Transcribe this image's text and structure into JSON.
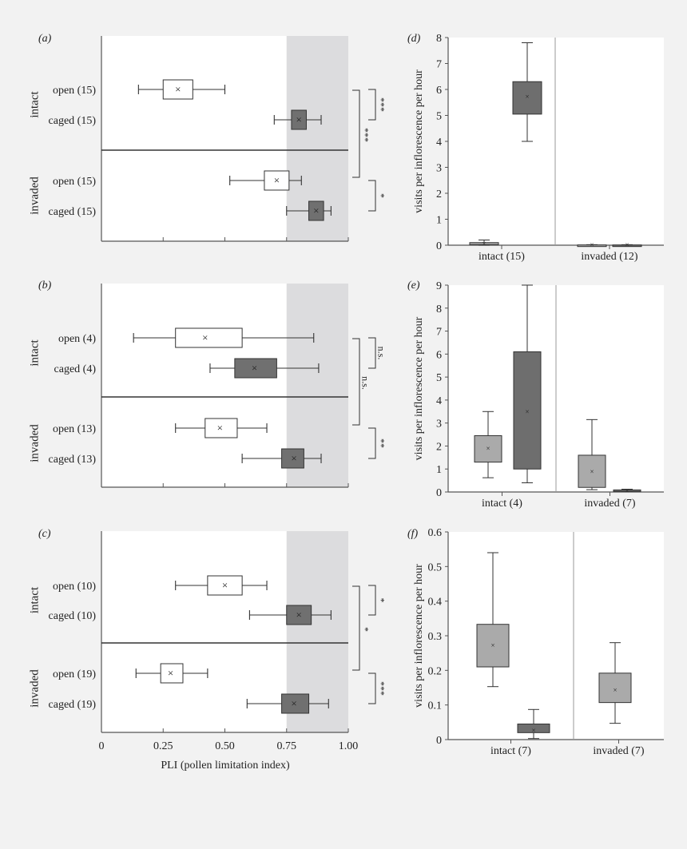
{
  "chart_data": [
    {
      "id": "a",
      "panel_label": "(a)",
      "type": "boxplot-horizontal",
      "xlim": [
        0,
        1
      ],
      "shaded_from": 0.75,
      "groups": [
        {
          "label": "intact",
          "rows": [
            {
              "label": "open (15)",
              "kind": "open",
              "whisker": [
                0.15,
                0.5
              ],
              "box": [
                0.25,
                0.37
              ],
              "mean": 0.31
            },
            {
              "label": "caged (15)",
              "kind": "caged",
              "whisker": [
                0.7,
                0.89
              ],
              "box": [
                0.77,
                0.83
              ],
              "mean": 0.8
            }
          ]
        },
        {
          "label": "invaded",
          "rows": [
            {
              "label": "open (15)",
              "kind": "open",
              "whisker": [
                0.52,
                0.81
              ],
              "box": [
                0.66,
                0.76
              ],
              "mean": 0.71
            },
            {
              "label": "caged (15)",
              "kind": "caged",
              "whisker": [
                0.75,
                0.93
              ],
              "box": [
                0.84,
                0.9
              ],
              "mean": 0.87
            }
          ]
        }
      ],
      "significance": {
        "group1": "***",
        "group2": "*",
        "between": "***"
      }
    },
    {
      "id": "b",
      "panel_label": "(b)",
      "type": "boxplot-horizontal",
      "xlim": [
        0,
        1
      ],
      "shaded_from": 0.75,
      "groups": [
        {
          "label": "intact",
          "rows": [
            {
              "label": "open (4)",
              "kind": "open",
              "whisker": [
                0.13,
                0.86
              ],
              "box": [
                0.3,
                0.57
              ],
              "mean": 0.42
            },
            {
              "label": "caged (4)",
              "kind": "caged",
              "whisker": [
                0.44,
                0.88
              ],
              "box": [
                0.54,
                0.71
              ],
              "mean": 0.62
            }
          ]
        },
        {
          "label": "invaded",
          "rows": [
            {
              "label": "open (13)",
              "kind": "open",
              "whisker": [
                0.3,
                0.67
              ],
              "box": [
                0.42,
                0.55
              ],
              "mean": 0.48
            },
            {
              "label": "caged (13)",
              "kind": "caged",
              "whisker": [
                0.57,
                0.89
              ],
              "box": [
                0.73,
                0.82
              ],
              "mean": 0.78
            }
          ]
        }
      ],
      "significance": {
        "group1": "n.s.",
        "group2": "**",
        "between": "n.s."
      }
    },
    {
      "id": "c",
      "panel_label": "(c)",
      "type": "boxplot-horizontal",
      "xlim": [
        0,
        1
      ],
      "shaded_from": 0.75,
      "xlabel": "PLI (pollen limitation index)",
      "xtick_labels": [
        "0",
        "0.25",
        "0.50",
        "0.75",
        "1.00"
      ],
      "groups": [
        {
          "label": "intact",
          "rows": [
            {
              "label": "open (10)",
              "kind": "open",
              "whisker": [
                0.3,
                0.67
              ],
              "box": [
                0.43,
                0.57
              ],
              "mean": 0.5
            },
            {
              "label": "caged (10)",
              "kind": "caged",
              "whisker": [
                0.6,
                0.93
              ],
              "box": [
                0.75,
                0.85
              ],
              "mean": 0.8
            }
          ]
        },
        {
          "label": "invaded",
          "rows": [
            {
              "label": "open (19)",
              "kind": "open",
              "whisker": [
                0.14,
                0.43
              ],
              "box": [
                0.24,
                0.33
              ],
              "mean": 0.28
            },
            {
              "label": "caged (19)",
              "kind": "caged",
              "whisker": [
                0.59,
                0.92
              ],
              "box": [
                0.73,
                0.84
              ],
              "mean": 0.78
            }
          ]
        }
      ],
      "significance": {
        "group1": "*",
        "group2": "***",
        "between": "*"
      }
    },
    {
      "id": "d",
      "panel_label": "(d)",
      "type": "boxplot-vertical",
      "ylabel": "visits per inflorescence per hour",
      "ylim": [
        0,
        8
      ],
      "ytick_labels": [
        "0",
        "1",
        "2",
        "3",
        "4",
        "5",
        "6",
        "7",
        "8"
      ],
      "categories": [
        {
          "label": "intact (15)",
          "boxes": [
            {
              "kind": "light",
              "whisker": [
                0,
                0.2
              ],
              "box": [
                0.02,
                0.1
              ],
              "mean": 0.06
            },
            {
              "kind": "dark",
              "whisker": [
                4.0,
                7.8
              ],
              "box": [
                5.05,
                6.3
              ],
              "mean": 5.72
            }
          ]
        },
        {
          "label": "invaded (12)",
          "boxes": [
            {
              "kind": "light",
              "whisker": [
                0,
                0.02
              ],
              "box": [
                0,
                0.01
              ],
              "mean": 0.01
            },
            {
              "kind": "dark",
              "whisker": [
                0,
                0.02
              ],
              "box": [
                0,
                0.01
              ],
              "mean": 0.01
            }
          ]
        }
      ]
    },
    {
      "id": "e",
      "panel_label": "(e)",
      "type": "boxplot-vertical",
      "ylabel": "visits per inflorescence per hour",
      "ylim": [
        0,
        9
      ],
      "ytick_labels": [
        "0",
        "1",
        "2",
        "3",
        "4",
        "5",
        "6",
        "7",
        "8",
        "9"
      ],
      "categories": [
        {
          "label": "intact (4)",
          "boxes": [
            {
              "kind": "light",
              "whisker": [
                0.62,
                3.5
              ],
              "box": [
                1.3,
                2.45
              ],
              "mean": 1.9
            },
            {
              "kind": "dark",
              "whisker": [
                0.4,
                9.0
              ],
              "box": [
                1.0,
                6.1
              ],
              "mean": 3.5
            }
          ]
        },
        {
          "label": "invaded (7)",
          "boxes": [
            {
              "kind": "light",
              "whisker": [
                0.1,
                3.15
              ],
              "box": [
                0.2,
                1.6
              ],
              "mean": 0.88
            },
            {
              "kind": "dark",
              "whisker": [
                0.02,
                0.12
              ],
              "box": [
                0.03,
                0.09
              ],
              "mean": 0.06
            }
          ]
        }
      ]
    },
    {
      "id": "f",
      "panel_label": "(f)",
      "type": "boxplot-vertical",
      "ylabel": "visits per inflorescence per hour",
      "ylim": [
        0,
        0.6
      ],
      "ytick_labels": [
        "0",
        "0.1",
        "0.2",
        "0.3",
        "0.4",
        "0.5",
        "0.6"
      ],
      "categories": [
        {
          "label": "intact (7)",
          "boxes": [
            {
              "kind": "light",
              "whisker": [
                0.153,
                0.54
              ],
              "box": [
                0.21,
                0.333
              ],
              "mean": 0.272
            },
            {
              "kind": "dark",
              "whisker": [
                0.003,
                0.087
              ],
              "box": [
                0.02,
                0.045
              ],
              "mean": 0.027
            }
          ]
        },
        {
          "label": "invaded (7)",
          "boxes": [
            {
              "kind": "light",
              "whisker": [
                0.047,
                0.28
              ],
              "box": [
                0.107,
                0.192
              ],
              "mean": 0.143
            }
          ]
        }
      ]
    }
  ],
  "colors": {
    "background": "#f2f2f2",
    "plot_bg": "#ffffff",
    "shade": "#dcdcde",
    "open_fill": "#ffffff",
    "caged_fill": "#707070",
    "light_fill": "#aaaaaa",
    "dark_fill": "#6e6e6e",
    "line": "#333333"
  },
  "mean_marker": "×"
}
